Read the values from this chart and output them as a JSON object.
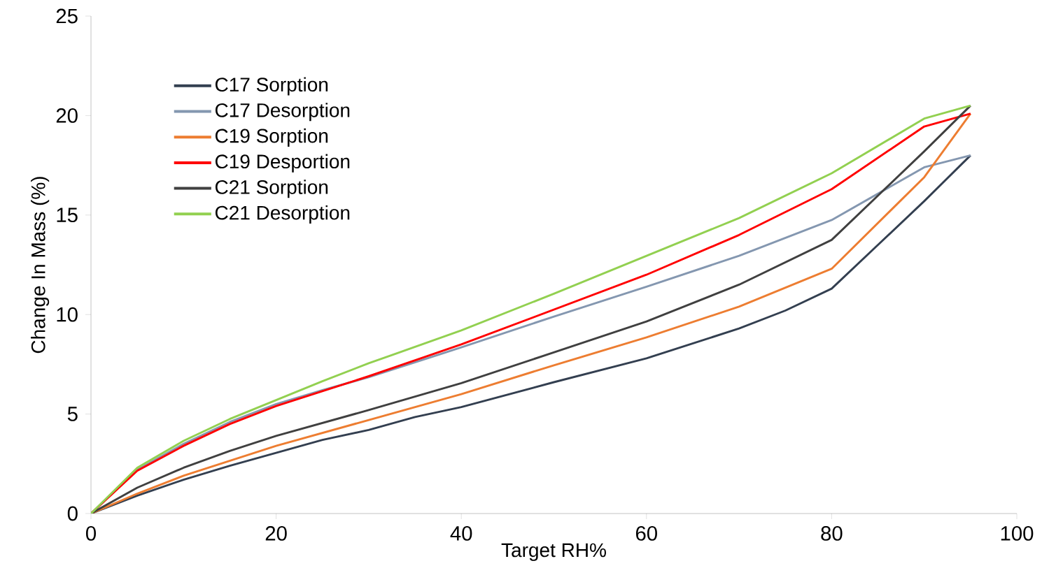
{
  "chart_data": {
    "type": "line",
    "xlabel": "Target RH%",
    "ylabel": "Change In Mass (%)",
    "xlim": [
      0,
      100
    ],
    "ylim": [
      0,
      25
    ],
    "xticks": [
      0,
      20,
      40,
      60,
      80,
      100
    ],
    "yticks": [
      0,
      5,
      10,
      15,
      20,
      25
    ],
    "grid": false,
    "legend": "top left",
    "marker": "none",
    "line_style": "solid",
    "series": [
      {
        "name": "C17 Sorption",
        "color": "#333f50",
        "x": [
          0,
          5,
          10,
          15,
          20,
          25,
          30,
          35,
          40,
          50,
          60,
          70,
          75,
          80,
          85,
          90,
          95
        ],
        "values": [
          0,
          0.9,
          1.7,
          2.4,
          3.05,
          3.7,
          4.2,
          4.85,
          5.35,
          6.6,
          7.8,
          9.3,
          10.2,
          11.3,
          13.5,
          15.7,
          18.0
        ]
      },
      {
        "name": "C17 Desorption",
        "color": "#8497b0",
        "x": [
          0,
          5,
          10,
          15,
          20,
          25,
          30,
          40,
          50,
          60,
          70,
          80,
          90,
          95
        ],
        "values": [
          0,
          2.2,
          3.5,
          4.6,
          5.5,
          6.2,
          6.85,
          8.35,
          9.9,
          11.4,
          12.95,
          14.75,
          17.4,
          18.0
        ]
      },
      {
        "name": "C19 Sorption",
        "color": "#ed7d31",
        "x": [
          0,
          5,
          10,
          20,
          30,
          40,
          50,
          60,
          70,
          80,
          90,
          95
        ],
        "values": [
          0,
          1.0,
          1.9,
          3.4,
          4.7,
          6.0,
          7.45,
          8.85,
          10.4,
          12.3,
          16.9,
          20.1
        ]
      },
      {
        "name": "C19 Desportion",
        "color": "#ff0000",
        "x": [
          0,
          5,
          10,
          15,
          20,
          30,
          40,
          50,
          60,
          70,
          80,
          90,
          95
        ],
        "values": [
          0,
          2.15,
          3.4,
          4.5,
          5.4,
          6.9,
          8.5,
          10.25,
          12.0,
          14.0,
          16.3,
          19.45,
          20.1
        ]
      },
      {
        "name": "C21 Sorption",
        "color": "#404040",
        "x": [
          0,
          5,
          10,
          15,
          20,
          30,
          40,
          50,
          60,
          70,
          80,
          90,
          95
        ],
        "values": [
          0,
          1.3,
          2.3,
          3.15,
          3.9,
          5.2,
          6.55,
          8.1,
          9.65,
          11.5,
          13.75,
          18.2,
          20.5
        ]
      },
      {
        "name": "C21 Desorption",
        "color": "#92d050",
        "x": [
          0,
          5,
          10,
          15,
          20,
          25,
          30,
          40,
          50,
          60,
          70,
          80,
          90,
          95
        ],
        "values": [
          0,
          2.3,
          3.65,
          4.75,
          5.7,
          6.65,
          7.55,
          9.2,
          11.05,
          12.95,
          14.85,
          17.1,
          19.85,
          20.5
        ]
      }
    ]
  }
}
